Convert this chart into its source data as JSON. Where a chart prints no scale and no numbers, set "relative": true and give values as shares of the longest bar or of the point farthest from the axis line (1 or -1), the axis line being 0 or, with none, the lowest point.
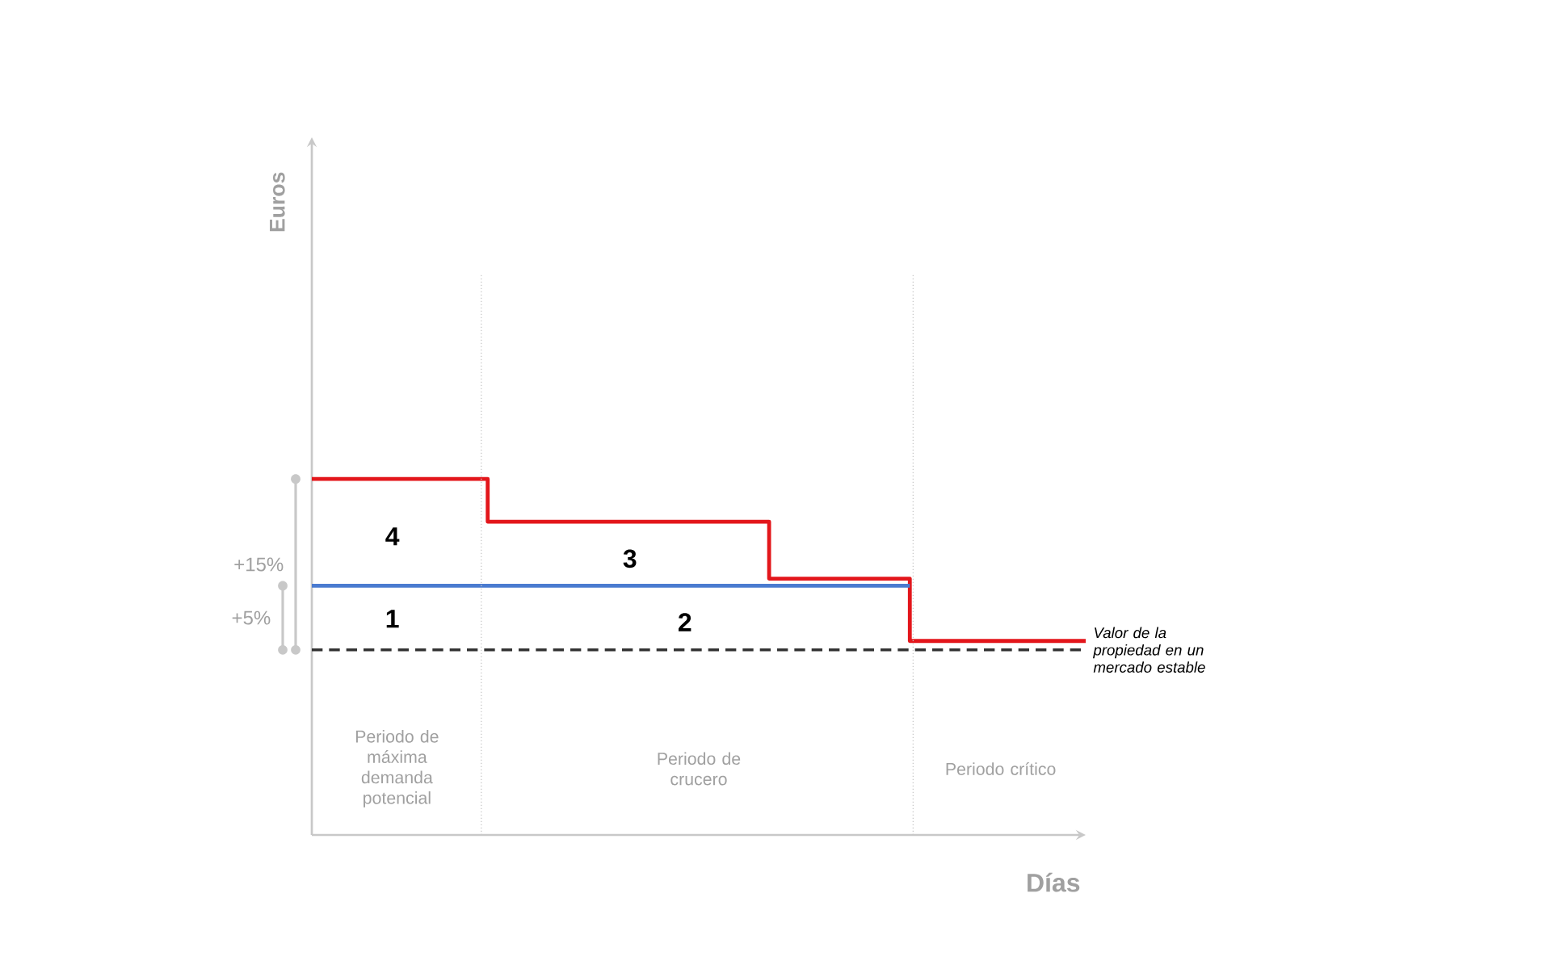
{
  "chart_data": {
    "type": "step",
    "relative": true,
    "xlabel": "Días",
    "categories": [
      null,
      null,
      null,
      null,
      null,
      null,
      null,
      null,
      null,
      null,
      null,
      null,
      null,
      null,
      null,
      null,
      null,
      null,
      null,
      null,
      null,
      null,
      null
    ],
    "series": [
      {
        "color": "#e3161b",
        "values": [
          1,
          1,
          1,
          1,
          1,
          0.88,
          0.88,
          0.88,
          0.88,
          0.88,
          0.88,
          0.88,
          0.88,
          0.72,
          0.72,
          0.72,
          0.72,
          0.545,
          0.545,
          0.545,
          0.545,
          0.545,
          0.545
        ]
      },
      {
        "type": "line",
        "color": "#4a7bd0",
        "values": [
          0.7,
          0.7,
          0.7,
          0.7,
          0.7,
          0.7,
          0.7,
          0.7,
          0.7,
          0.7,
          0.7,
          0.7,
          0.7,
          0.7,
          0.7,
          0.7,
          0.7,
          0.7,
          null,
          null,
          null,
          null,
          null
        ]
      }
    ],
    "ref_lines": [
      {
        "axis": "y",
        "value": 0.52,
        "label": "Valor de la propiedad en un mercado estable",
        "color": "#333333",
        "line_style": "dashed"
      }
    ],
    "annotations": [
      "4",
      "3",
      "1",
      "2",
      "+15%",
      "+5%",
      "Periodo de máxima demanda potencial",
      "Periodo de crucero",
      "Periodo crítico",
      "Euros"
    ]
  }
}
